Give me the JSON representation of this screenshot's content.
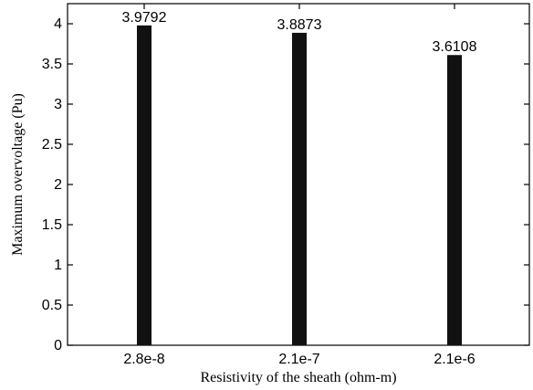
{
  "chart_data": {
    "type": "bar",
    "categories": [
      "2.8e-8",
      "2.1e-7",
      "2.1e-6"
    ],
    "values": [
      3.9792,
      3.8873,
      3.6108
    ],
    "data_labels": [
      "3.9792",
      "3.8873",
      "3.6108"
    ],
    "title": "",
    "xlabel": "Resistivity of the sheath (ohm-m)",
    "ylabel": "Maximum overvoltage (Pu)",
    "ylim": [
      0,
      4.25
    ],
    "yticks": [
      0,
      0.5,
      1,
      1.5,
      2,
      2.5,
      3,
      3.5,
      4
    ],
    "ytick_labels": [
      "0",
      "0.5",
      "1",
      "1.5",
      "2",
      "2.5",
      "3",
      "3.5",
      "4"
    ],
    "grid": false,
    "bar_color": "#111111"
  }
}
